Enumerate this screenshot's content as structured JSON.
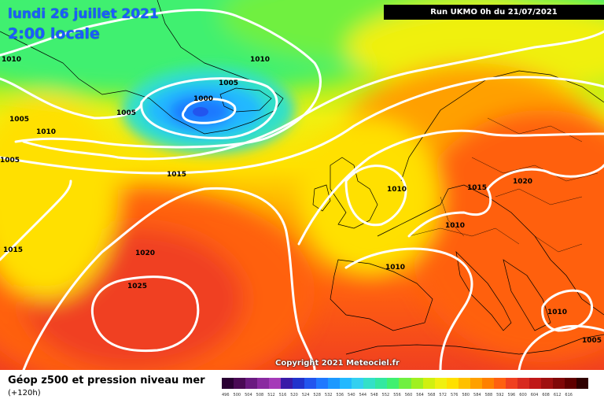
{
  "header": {
    "date_line": "lundi 26 juillet 2021",
    "time_line": "2:00 locale",
    "run_info": "Run UKMO 0h du 21/07/2021"
  },
  "copyright": "Copyright 2021 Meteociel.fr",
  "footer": {
    "title": "Géop z500 et pression niveau mer",
    "subtitle": "(+120h)"
  },
  "scale": {
    "labels": [
      "496",
      "500",
      "504",
      "508",
      "512",
      "516",
      "520",
      "524",
      "528",
      "532",
      "536",
      "540",
      "544",
      "548",
      "552",
      "556",
      "560",
      "564",
      "568",
      "572",
      "576",
      "580",
      "584",
      "588",
      "592",
      "596",
      "600",
      "604",
      "608",
      "612",
      "616"
    ],
    "colors": [
      "#2a0033",
      "#4a0a55",
      "#6a1a80",
      "#8a2aa0",
      "#a53ab8",
      "#3a1aa8",
      "#2233cc",
      "#2255ee",
      "#1f78ff",
      "#1c98ff",
      "#22b8ff",
      "#33d0f0",
      "#33e0c8",
      "#33e8a0",
      "#40f070",
      "#70f040",
      "#a0f020",
      "#d0f010",
      "#f0f010",
      "#ffe000",
      "#ffc000",
      "#ffa000",
      "#ff8000",
      "#ff6010",
      "#f04020",
      "#d82a20",
      "#c01818",
      "#a01010",
      "#800808",
      "#600000",
      "#300000"
    ]
  },
  "isobars": {
    "labels": [
      "1010",
      "1010",
      "1005",
      "1000",
      "1005",
      "1005",
      "1010",
      "1005",
      "1015",
      "1015",
      "1010",
      "1015",
      "1020",
      "1010",
      "1010",
      "1020",
      "1025",
      "1010",
      "1005"
    ]
  },
  "colors": {
    "isobar": "#ffffff",
    "date_text": "#1a5cff",
    "coastline": "#000000"
  }
}
